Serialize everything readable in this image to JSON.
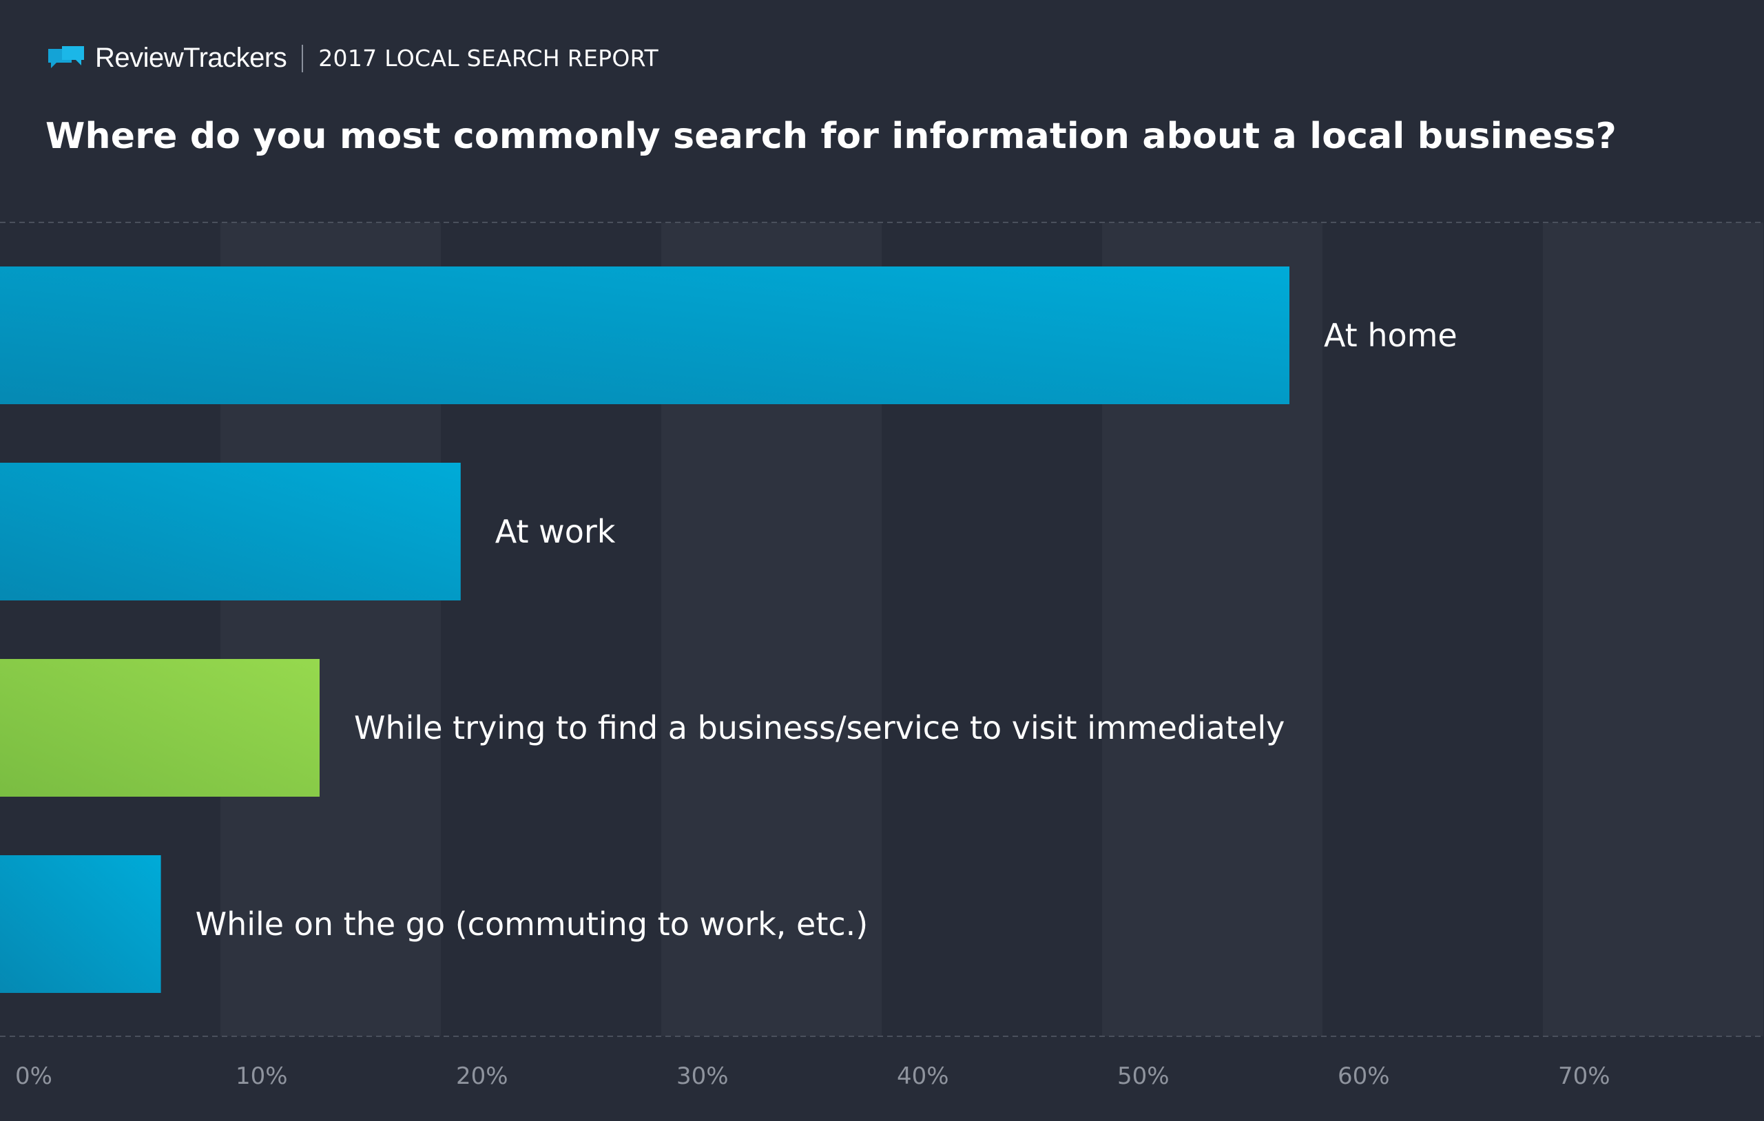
{
  "header": {
    "brand": "ReviewTrackers",
    "report": "2017 LOCAL SEARCH REPORT"
  },
  "chart_data": {
    "type": "bar",
    "orientation": "horizontal",
    "title": "Where do you most commonly search for information about a local business?",
    "categories": [
      "At home",
      "At work",
      "While trying to find a business/service to visit immediately",
      "While on the go (commuting to work, etc.)"
    ],
    "values": [
      58.5,
      20.9,
      14.5,
      7.3
    ],
    "xlim": [
      0,
      80
    ],
    "x_ticks": [
      "0%",
      "10%",
      "20%",
      "30%",
      "40%",
      "50%",
      "60%",
      "70%"
    ],
    "grid": "alternating vertical bands",
    "colors": {
      "background": "#272c38",
      "band": "#2e333f",
      "bar_blue_dark": "#0589b3",
      "bar_blue_light": "#00abd8",
      "bar_green_dark": "#7abd42",
      "bar_green_light": "#96d94e",
      "label": "#ffffff",
      "tick": "#8f949e"
    },
    "bar_color_keys": [
      "blue",
      "blue",
      "green",
      "blue"
    ]
  }
}
